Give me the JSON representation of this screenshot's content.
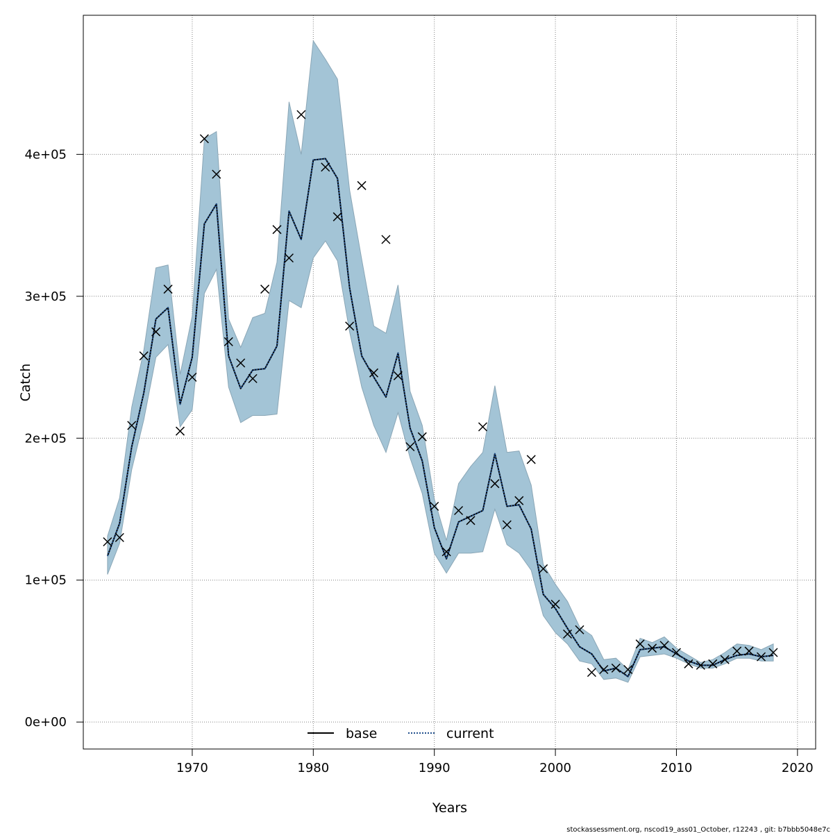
{
  "chart_data": {
    "type": "line",
    "title": "",
    "xlabel": "Years",
    "ylabel": "Catch",
    "xlim": [
      1961,
      2021.5
    ],
    "ylim": [
      -19000,
      498000
    ],
    "x_ticks": [
      1970,
      1980,
      1990,
      2000,
      2010,
      2020
    ],
    "x_tick_labels": [
      "1970",
      "1980",
      "1990",
      "2000",
      "2010",
      "2020"
    ],
    "y_ticks": [
      0,
      100000,
      200000,
      300000,
      400000
    ],
    "y_tick_labels": [
      "0e+00",
      "1e+05",
      "2e+05",
      "3e+05",
      "4e+05"
    ],
    "grid": true,
    "legend_placement": "bottom",
    "legend": [
      {
        "label": "base",
        "style": "solid",
        "color": "#000000"
      },
      {
        "label": "current",
        "style": "dotted",
        "color": "#1f4e8c"
      }
    ],
    "years": [
      1963,
      1964,
      1965,
      1966,
      1967,
      1968,
      1969,
      1970,
      1971,
      1972,
      1973,
      1974,
      1975,
      1976,
      1977,
      1978,
      1979,
      1980,
      1981,
      1982,
      1983,
      1984,
      1985,
      1986,
      1987,
      1988,
      1989,
      1990,
      1991,
      1992,
      1993,
      1994,
      1995,
      1996,
      1997,
      1998,
      1999,
      2000,
      2001,
      2002,
      2003,
      2004,
      2005,
      2006,
      2007,
      2008,
      2009,
      2010,
      2011,
      2012,
      2013,
      2014,
      2015,
      2016,
      2017,
      2018
    ],
    "series": [
      {
        "name": "base",
        "values": [
          117000,
          140000,
          194000,
          232000,
          284000,
          292000,
          224000,
          257000,
          351000,
          365000,
          258000,
          235000,
          248000,
          249000,
          265000,
          360000,
          340000,
          396000,
          397000,
          383000,
          306000,
          258000,
          243000,
          229000,
          260000,
          207000,
          184000,
          137000,
          115000,
          141000,
          145000,
          149000,
          189000,
          152000,
          153000,
          136000,
          90000,
          80000,
          66000,
          53000,
          48000,
          36000,
          38000,
          32000,
          51000,
          52000,
          53000,
          48000,
          43000,
          40000,
          40000,
          44000,
          47000,
          48000,
          46000,
          47000
        ]
      },
      {
        "name": "current",
        "values": [
          117000,
          140000,
          194000,
          232000,
          284000,
          292000,
          224000,
          257000,
          351000,
          365000,
          258000,
          235000,
          248000,
          249000,
          265000,
          360000,
          340000,
          396000,
          397000,
          383000,
          306000,
          258000,
          243000,
          229000,
          260000,
          207000,
          184000,
          137000,
          115000,
          141000,
          145000,
          149000,
          189000,
          152000,
          153000,
          136000,
          90000,
          80000,
          66000,
          53000,
          48000,
          36000,
          38000,
          32000,
          51000,
          52000,
          53000,
          48000,
          43000,
          40000,
          40000,
          44000,
          47000,
          48000,
          46000,
          47000
        ]
      }
    ],
    "confidence_band": {
      "lower": [
        104000,
        126000,
        178000,
        213000,
        257000,
        266000,
        208000,
        220000,
        302000,
        319000,
        236000,
        211000,
        216000,
        216000,
        217000,
        297000,
        292000,
        327000,
        339000,
        325000,
        275000,
        236000,
        209000,
        190000,
        218000,
        186000,
        161000,
        119000,
        105000,
        119000,
        119000,
        120000,
        150000,
        125000,
        119000,
        107000,
        75000,
        63000,
        55000,
        43000,
        41000,
        30000,
        31000,
        28000,
        46000,
        47000,
        48000,
        45000,
        41000,
        38000,
        38000,
        41000,
        45000,
        45000,
        43000,
        43000
      ],
      "upper": [
        131000,
        158000,
        222000,
        262000,
        320000,
        322000,
        245000,
        286000,
        411000,
        416000,
        284000,
        264000,
        285000,
        288000,
        324000,
        437000,
        400000,
        480000,
        467000,
        453000,
        375000,
        326000,
        279000,
        274000,
        308000,
        233000,
        209000,
        157000,
        128000,
        168000,
        180000,
        190000,
        237000,
        190000,
        191000,
        167000,
        111000,
        97000,
        85000,
        67000,
        61000,
        44000,
        45000,
        37000,
        59000,
        56000,
        60000,
        52000,
        47000,
        42000,
        44000,
        49000,
        55000,
        54000,
        51000,
        55000
      ]
    },
    "observed": {
      "marker": "x",
      "years": [
        1963,
        1964,
        1965,
        1966,
        1967,
        1968,
        1969,
        1970,
        1971,
        1972,
        1973,
        1974,
        1975,
        1976,
        1977,
        1978,
        1979,
        1981,
        1982,
        1983,
        1984,
        1985,
        1986,
        1987,
        1988,
        1989,
        1990,
        1991,
        1992,
        1993,
        1994,
        1995,
        1996,
        1997,
        1998,
        1999,
        2000,
        2001,
        2002,
        2003,
        2004,
        2005,
        2006,
        2007,
        2008,
        2009,
        2010,
        2011,
        2012,
        2013,
        2014,
        2015,
        2016,
        2017,
        2018
      ],
      "values": [
        127000,
        130000,
        209000,
        258000,
        275000,
        305000,
        205000,
        243000,
        411000,
        386000,
        268000,
        253000,
        242000,
        305000,
        347000,
        327000,
        428000,
        391000,
        356000,
        279000,
        378000,
        246000,
        340000,
        244000,
        194000,
        201000,
        152000,
        120000,
        149000,
        142000,
        208000,
        168000,
        139000,
        156000,
        185000,
        108000,
        83000,
        62000,
        65000,
        35000,
        37000,
        38000,
        37000,
        55000,
        52000,
        54000,
        49000,
        41000,
        40000,
        41000,
        44000,
        50000,
        50000,
        46000,
        49000
      ]
    },
    "colors": {
      "band_fill": "#a3c4d6",
      "band_stroke": "#8aa6b6",
      "base_line": "#000000",
      "current_line": "#1f4e8c",
      "grid": "#808080",
      "marker": "#000000"
    }
  },
  "footer": {
    "credit": "stockassessment.org, nscod19_ass01_October, r12243 , git: b7bbb5048e7c"
  }
}
